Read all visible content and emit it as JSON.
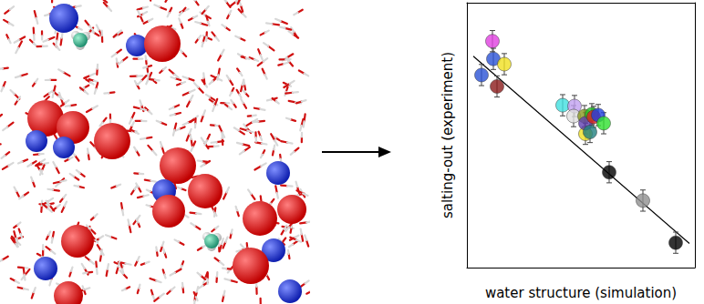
{
  "chart_data": {
    "type": "scatter",
    "x_label": "water structure (simulation)",
    "y_label": "salting-out (experiment)",
    "xlim": [
      0,
      10
    ],
    "ylim": [
      0,
      10
    ],
    "tick_labels": false,
    "grid": false,
    "x": [
      0.64,
      1.12,
      1.16,
      1.64,
      1.32,
      4.2,
      4.72,
      4.68,
      5.2,
      5.16,
      5.2,
      5.4,
      5.48,
      5.56,
      5.76,
      6.0,
      6.24,
      7.72,
      9.16
    ],
    "values": [
      7.27,
      8.55,
      7.88,
      7.68,
      6.84,
      6.13,
      6.1,
      5.72,
      5.05,
      5.72,
      5.45,
      5.12,
      5.79,
      5.69,
      5.76,
      5.45,
      3.6,
      2.53,
      0.94
    ],
    "y_err": [
      0.4,
      0.4,
      0.4,
      0.4,
      0.4,
      0.4,
      0.4,
      0.4,
      0.4,
      0.4,
      0.4,
      0.4,
      0.4,
      0.4,
      0.4,
      0.4,
      0.4,
      0.4,
      0.4
    ],
    "colors": [
      "#2a52d6",
      "#e040e0",
      "#2a52d6",
      "#f0e020",
      "#8b1a1a",
      "#40e0e0",
      "#c0a0f0",
      "#e0e0e0",
      "#f0e020",
      "#8a9a20",
      "#6040b0",
      "#208080",
      "#20c020",
      "#e02020",
      "#2040e0",
      "#30e030",
      "#000000",
      "#909090",
      "#000000"
    ],
    "marker": "circle",
    "fit_line": {
      "type": "line",
      "color": "#000000",
      "x": [
        0.28,
        9.76
      ],
      "values": [
        7.98,
        0.91
      ]
    }
  }
}
